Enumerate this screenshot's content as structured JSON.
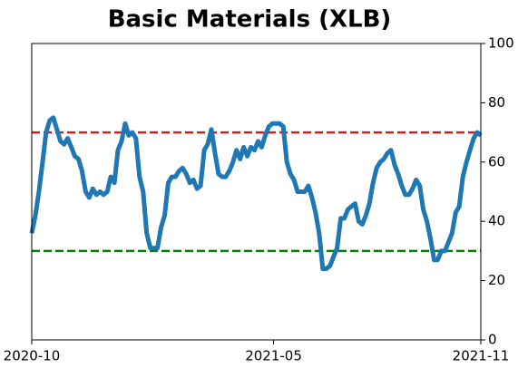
{
  "chart_data": {
    "type": "line",
    "title": "Basic Materials (XLB)",
    "xlim": [
      "2020-10",
      "2021-11"
    ],
    "xticks": [
      "2020-10",
      "2021-05",
      "2021-11"
    ],
    "ylim": [
      0,
      100
    ],
    "yticks": [
      0,
      20,
      40,
      60,
      80,
      100
    ],
    "y_axis_side": "right",
    "color": "#1f77b4",
    "hlines": [
      {
        "value": 70,
        "color": "#e31a1c"
      },
      {
        "value": 30,
        "color": "#008000"
      }
    ],
    "values": [
      36,
      42,
      50,
      60,
      70,
      74,
      75,
      71,
      67,
      66,
      68,
      65,
      62,
      61,
      57,
      50,
      48,
      51,
      49,
      50,
      49,
      50,
      55,
      53,
      64,
      67,
      73,
      69,
      70,
      68,
      55,
      50,
      36,
      31,
      31,
      31,
      38,
      42,
      53,
      55,
      55,
      57,
      58,
      56,
      53,
      54,
      51,
      52,
      64,
      66,
      71,
      63,
      56,
      55,
      55,
      57,
      60,
      64,
      61,
      65,
      62,
      65,
      64,
      67,
      65,
      69,
      72,
      73,
      73,
      73,
      72,
      60,
      56,
      54,
      50,
      50,
      50,
      52,
      48,
      43,
      36,
      24,
      24,
      25,
      28,
      31,
      41,
      41,
      44,
      45,
      46,
      40,
      39,
      42,
      46,
      53,
      58,
      60,
      61,
      63,
      64,
      59,
      56,
      52,
      49,
      49,
      51,
      54,
      52,
      44,
      40,
      34,
      27,
      27,
      30,
      30,
      33,
      36,
      43,
      45,
      55,
      60,
      64,
      68,
      70,
      69
    ]
  }
}
